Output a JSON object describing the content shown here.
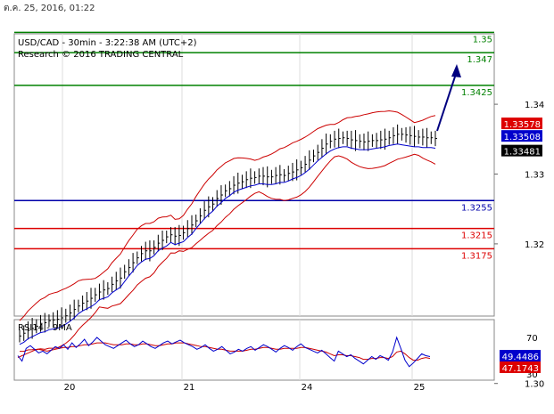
{
  "timestamp": "ต.ค. 25, 2016, 01:22",
  "chart_data": {
    "type": "line",
    "title": "USD/CAD - 30min - 3:22:38 AM (UTC+2)",
    "subtitle": "Research © 2016 TRADING CENTRAL",
    "x_ticks": [
      "20",
      "21",
      "24",
      "25"
    ],
    "price_ylim": [
      1.285,
      1.35
    ],
    "price_ticks": [
      {
        "label": "1.34",
        "value": 1.34
      },
      {
        "label": "1.33",
        "value": 1.33
      },
      {
        "label": "1.32",
        "value": 1.32
      },
      {
        "label": "1.30",
        "value": 1.3
      }
    ],
    "levels": [
      {
        "label": "1.35",
        "value": 1.3503,
        "color": "#008000"
      },
      {
        "label": "1.347",
        "value": 1.3474,
        "color": "#008000"
      },
      {
        "label": "1.3425",
        "value": 1.3427,
        "color": "#008000"
      },
      {
        "label": "1.3255",
        "value": 1.3262,
        "color": "#0000aa"
      },
      {
        "label": "1.3215",
        "value": 1.3222,
        "color": "#dd0000"
      },
      {
        "label": "1.3175",
        "value": 1.3193,
        "color": "#dd0000"
      }
    ],
    "price_tags": [
      {
        "label": "1.33578",
        "value": 1.3372,
        "color": "#dd0000"
      },
      {
        "label": "1.33508",
        "value": 1.3354,
        "color": "#0000cc"
      },
      {
        "label": "1.33481",
        "value": 1.3333,
        "color": "#000000"
      }
    ],
    "price_series": [
      1.3068,
      1.3072,
      1.3076,
      1.3079,
      1.3082,
      1.3086,
      1.3087,
      1.309,
      1.3091,
      1.3092,
      1.3094,
      1.3097,
      1.3101,
      1.3106,
      1.3111,
      1.3115,
      1.3118,
      1.3122,
      1.3127,
      1.3131,
      1.3134,
      1.3136,
      1.3142,
      1.3147,
      1.3151,
      1.316,
      1.3166,
      1.3173,
      1.318,
      1.3186,
      1.319,
      1.319,
      1.3195,
      1.3201,
      1.3205,
      1.321,
      1.3213,
      1.3211,
      1.3212,
      1.3216,
      1.3222,
      1.3227,
      1.3233,
      1.324,
      1.3248,
      1.3253,
      1.3257,
      1.3265,
      1.327,
      1.3276,
      1.3279,
      1.3284,
      1.3287,
      1.3289,
      1.3292,
      1.3294,
      1.3295,
      1.3297,
      1.3297,
      1.3296,
      1.3296,
      1.3298,
      1.3299,
      1.3298,
      1.3301,
      1.3303,
      1.3306,
      1.3309,
      1.3314,
      1.332,
      1.3326,
      1.3331,
      1.3337,
      1.3343,
      1.3347,
      1.335,
      1.3351,
      1.3352,
      1.3351,
      1.3349,
      1.3348,
      1.3347,
      1.3346,
      1.3347,
      1.3348,
      1.3348,
      1.3349,
      1.335,
      1.3352,
      1.3355,
      1.3357,
      1.3357,
      1.3356,
      1.3355,
      1.3354,
      1.3353,
      1.3353,
      1.3352,
      1.3352,
      1.3351
    ],
    "ma_series": [
      1.3068,
      1.3071,
      1.3076,
      1.3079,
      1.3082,
      1.3085,
      1.3086,
      1.3089,
      1.309,
      1.3091,
      1.3094,
      1.3097,
      1.3101,
      1.3106,
      1.3112,
      1.3116,
      1.3119,
      1.3122,
      1.3126,
      1.3132,
      1.3134,
      1.3136,
      1.3142,
      1.3146,
      1.315,
      1.3158,
      1.3166,
      1.3173,
      1.3181,
      1.3186,
      1.319,
      1.3191,
      1.3195,
      1.3202,
      1.3206,
      1.3209,
      1.3214,
      1.3211,
      1.3213,
      1.3215,
      1.3221,
      1.3226,
      1.3234,
      1.3241,
      1.3248,
      1.3254,
      1.3259,
      1.3266,
      1.3271,
      1.3277,
      1.3281,
      1.3286,
      1.3289,
      1.3291,
      1.3293,
      1.3295,
      1.3296,
      1.3298,
      1.3298,
      1.3297,
      1.3297,
      1.3298,
      1.33,
      1.33,
      1.3302,
      1.3305,
      1.3307,
      1.331,
      1.3314,
      1.3319,
      1.3325,
      1.3331,
      1.3336,
      1.3341,
      1.3345,
      1.3348,
      1.335,
      1.3351,
      1.3351,
      1.3349,
      1.3348,
      1.3347,
      1.3347,
      1.3347,
      1.3348,
      1.3349,
      1.335,
      1.3351,
      1.3353,
      1.3354,
      1.3355,
      1.3354,
      1.3353,
      1.3352,
      1.3351,
      1.3351,
      1.335,
      1.335,
      1.335,
      1.3349
    ],
    "rsi_title": "RSI14 - 9MA",
    "rsi_ticks": [
      {
        "label": "70",
        "value": 70
      },
      {
        "label": "30",
        "value": 30
      }
    ],
    "rsi_tags": [
      {
        "label": "49.4486",
        "value": 49.45,
        "color": "#0000cc"
      },
      {
        "label": "47.1743",
        "value": 47.17,
        "color": "#dd0000"
      }
    ],
    "rsi_series": [
      50,
      44,
      58,
      61,
      57,
      53,
      55,
      52,
      56,
      60,
      58,
      62,
      57,
      64,
      59,
      63,
      68,
      61,
      65,
      70,
      66,
      62,
      60,
      58,
      61,
      64,
      67,
      63,
      60,
      62,
      66,
      63,
      60,
      58,
      61,
      64,
      66,
      63,
      65,
      67,
      64,
      62,
      60,
      57,
      59,
      62,
      58,
      55,
      57,
      60,
      56,
      52,
      54,
      57,
      55,
      58,
      60,
      56,
      59,
      62,
      60,
      57,
      54,
      58,
      61,
      59,
      56,
      60,
      63,
      59,
      57,
      55,
      53,
      56,
      52,
      48,
      44,
      55,
      52,
      49,
      51,
      47,
      44,
      41,
      45,
      49,
      46,
      50,
      48,
      45,
      54,
      70,
      58,
      45,
      38,
      42,
      47,
      52,
      50,
      49
    ],
    "rsi_ma_series": [
      48,
      50,
      52,
      54,
      56,
      57,
      56,
      55,
      56,
      57,
      58,
      59,
      59,
      60,
      60,
      61,
      62,
      62,
      63,
      64,
      64,
      64,
      63,
      62,
      62,
      62,
      63,
      63,
      62,
      62,
      63,
      63,
      62,
      61,
      61,
      62,
      63,
      63,
      64,
      64,
      64,
      63,
      62,
      61,
      60,
      60,
      59,
      58,
      57,
      57,
      56,
      55,
      55,
      55,
      55,
      56,
      57,
      57,
      58,
      59,
      59,
      58,
      57,
      57,
      58,
      58,
      58,
      58,
      59,
      59,
      58,
      57,
      56,
      55,
      54,
      52,
      50,
      51,
      51,
      50,
      50,
      49,
      48,
      46,
      46,
      47,
      47,
      48,
      48,
      47,
      49,
      54,
      55,
      52,
      48,
      45,
      45,
      47,
      48,
      47
    ]
  }
}
